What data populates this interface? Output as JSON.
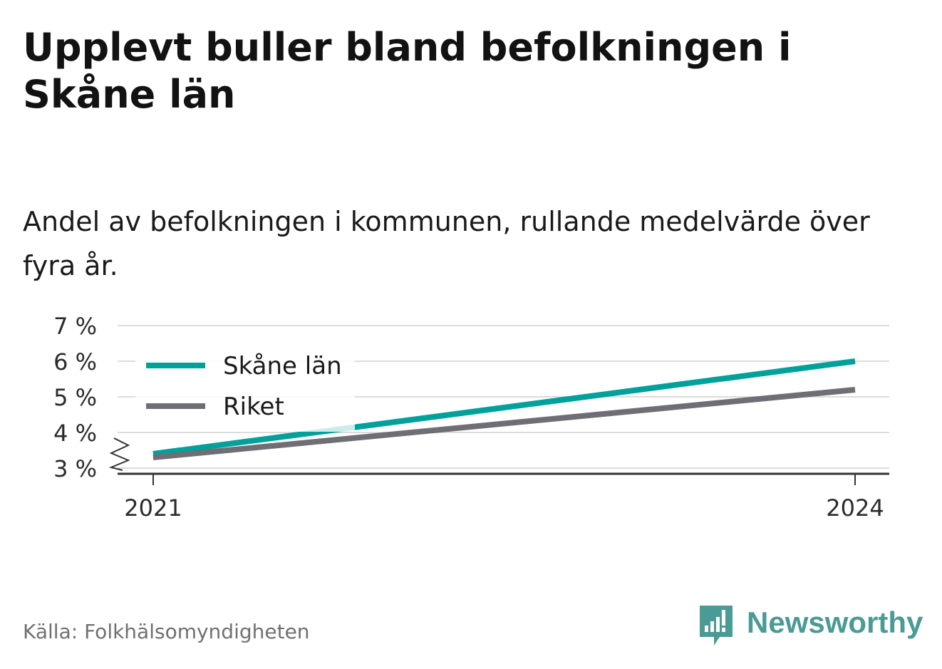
{
  "brand": {
    "name": "Newsworthy",
    "color": "#4a9a96"
  },
  "source": "Källa: Folkhälsomyndigheten",
  "chart_data": {
    "type": "line",
    "title": "Upplevt buller bland befolkningen i Skåne län",
    "subtitle": "Andel av befolkningen i kommunen, rullande medelvärde över fyra år.",
    "x": [
      2021,
      2024
    ],
    "x_tick_labels": [
      "2021",
      "2024"
    ],
    "ylim": [
      3,
      7
    ],
    "y_ticks": [
      3,
      4,
      5,
      6,
      7
    ],
    "y_tick_labels": [
      "3 %",
      "4 %",
      "5 %",
      "6 %",
      "7 %"
    ],
    "y_axis_break": true,
    "grid": true,
    "legend_position": "top-left",
    "series": [
      {
        "name": "Skåne län",
        "color": "#00a19a",
        "values": [
          3.4,
          6.0
        ]
      },
      {
        "name": "Riket",
        "color": "#6f6e75",
        "values": [
          3.3,
          5.2
        ]
      }
    ]
  }
}
